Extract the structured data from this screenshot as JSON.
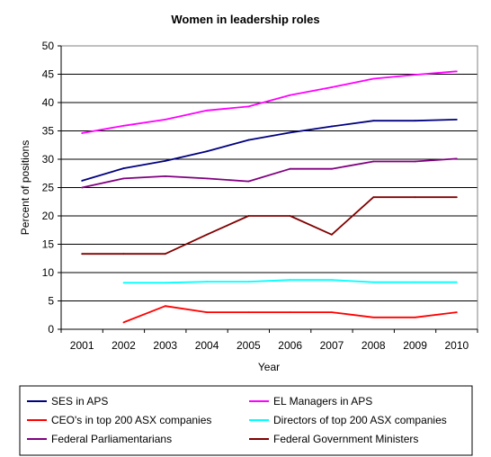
{
  "chart_data": {
    "type": "line",
    "title": "Women in leadership roles",
    "xlabel": "Year",
    "ylabel": "Percent of positions",
    "ylim": [
      0,
      50
    ],
    "yticks": [
      0,
      5,
      10,
      15,
      20,
      25,
      30,
      35,
      40,
      45,
      50
    ],
    "categories": [
      "2001",
      "2002",
      "2003",
      "2004",
      "2005",
      "2006",
      "2007",
      "2008",
      "2009",
      "2010"
    ],
    "grid": "horizontal",
    "legend_position": "bottom",
    "series": [
      {
        "name": "SES in APS",
        "color": "#000080",
        "values": [
          26.2,
          28.4,
          29.7,
          31.4,
          33.4,
          34.7,
          35.8,
          36.8,
          36.8,
          37.0
        ]
      },
      {
        "name": "EL Managers in APS",
        "color": "#ff00ff",
        "values": [
          34.6,
          35.9,
          37.0,
          38.6,
          39.3,
          41.3,
          42.7,
          44.2,
          44.9,
          45.5
        ]
      },
      {
        "name": "CEO's in top 200 ASX companies",
        "color": "#ff0000",
        "values": [
          null,
          1.2,
          4.1,
          3.0,
          3.0,
          3.0,
          3.0,
          2.1,
          2.1,
          3.0
        ]
      },
      {
        "name": "Directors of top 200 ASX companies",
        "color": "#00ffff",
        "values": [
          null,
          8.2,
          8.2,
          8.4,
          8.4,
          8.7,
          8.7,
          8.3,
          8.3,
          8.3
        ]
      },
      {
        "name": "Federal Parliamentarians",
        "color": "#800080",
        "values": [
          25.0,
          26.6,
          27.0,
          26.6,
          26.1,
          28.3,
          28.3,
          29.6,
          29.6,
          30.1
        ]
      },
      {
        "name": "Federal Government Ministers",
        "color": "#800000",
        "values": [
          13.3,
          13.3,
          13.3,
          16.7,
          20.0,
          20.0,
          16.7,
          23.3,
          23.3,
          23.3
        ]
      }
    ]
  }
}
